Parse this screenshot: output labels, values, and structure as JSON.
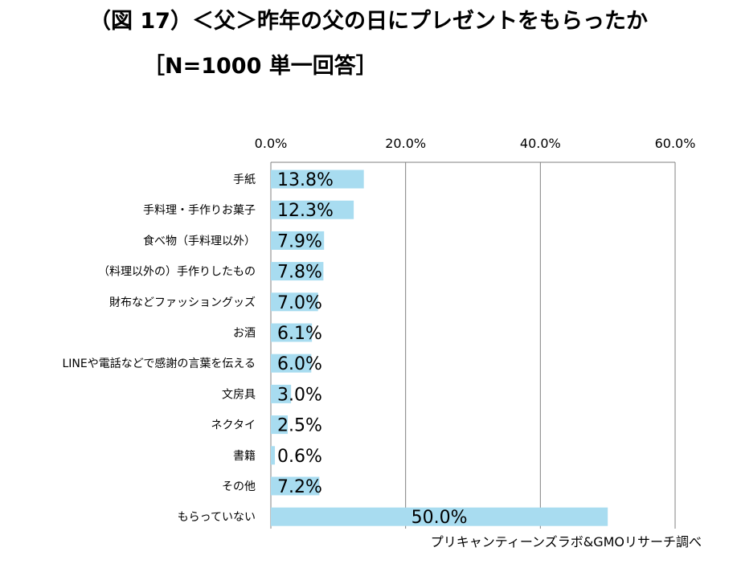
{
  "title_line1": "（図 17）＜父＞昨年の父の日にプレゼントをもらったか",
  "title_line2": "［N=1000 単一回答］",
  "source": "プリキャンティーンズラボ&GMOリサーチ調べ",
  "colors": {
    "bar": "#a8dcf0",
    "grid": "#808080",
    "text": "#000000"
  },
  "chart_data": {
    "type": "bar",
    "orientation": "horizontal",
    "categories": [
      "手紙",
      "手料理・手作りお菓子",
      "食べ物（手料理以外）",
      "（料理以外の）手作りしたもの",
      "財布などファッショングッズ",
      "お酒",
      "LINEや電話などで感謝の言葉を伝える",
      "文房具",
      "ネクタイ",
      "書籍",
      "その他",
      "もらっていない"
    ],
    "values": [
      13.8,
      12.3,
      7.9,
      7.8,
      7.0,
      6.1,
      6.0,
      3.0,
      2.5,
      0.6,
      7.2,
      50.0
    ],
    "value_labels": [
      "13.8%",
      "12.3%",
      "7.9%",
      "7.8%",
      "7.0%",
      "6.1%",
      "6.0%",
      "3.0%",
      "2.5%",
      "0.6%",
      "7.2%",
      "50.0%"
    ],
    "x_ticks": [
      0,
      20,
      40,
      60
    ],
    "x_tick_labels": [
      "0.0%",
      "20.0%",
      "40.0%",
      "60.0%"
    ],
    "xlim": [
      0,
      60
    ],
    "axis_position": "top",
    "grid": true,
    "legend": "none"
  }
}
